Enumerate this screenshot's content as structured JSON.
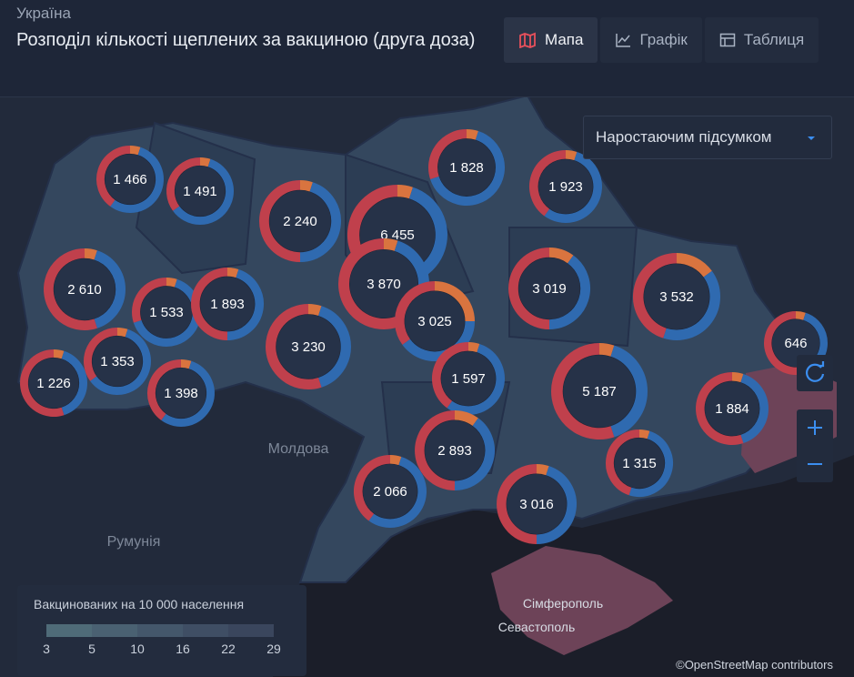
{
  "header": {
    "kicker": "Україна",
    "title": "Розподіл кількості щеплених за вакциною (друга доза)"
  },
  "tabs": [
    "Мапа",
    "Графік",
    "Таблиця"
  ],
  "dropdown": "Наростаючим підсумком",
  "places": [
    "Молдова",
    "Румунія",
    "Сімферополь",
    "Севастополь"
  ],
  "donuts": [
    {
      "label": "1 466",
      "shares": [
        5,
        55,
        40
      ]
    },
    {
      "label": "1 491",
      "shares": [
        5,
        60,
        35
      ]
    },
    {
      "label": "2 240",
      "shares": [
        5,
        45,
        50
      ]
    },
    {
      "label": "6 455",
      "shares": [
        5,
        50,
        45
      ]
    },
    {
      "label": "1 828",
      "shares": [
        5,
        65,
        30
      ]
    },
    {
      "label": "1 923",
      "shares": [
        5,
        55,
        40
      ]
    },
    {
      "label": "2 610",
      "shares": [
        5,
        40,
        55
      ]
    },
    {
      "label": "1 533",
      "shares": [
        5,
        65,
        30
      ]
    },
    {
      "label": "1 893",
      "shares": [
        5,
        45,
        50
      ]
    },
    {
      "label": "3 870",
      "shares": [
        5,
        40,
        55
      ]
    },
    {
      "label": "3 019",
      "shares": [
        10,
        40,
        50
      ]
    },
    {
      "label": "3 532",
      "shares": [
        15,
        40,
        45
      ]
    },
    {
      "label": "3 025",
      "shares": [
        25,
        40,
        35
      ]
    },
    {
      "label": "3 230",
      "shares": [
        5,
        40,
        55
      ]
    },
    {
      "label": "646",
      "shares": [
        5,
        40,
        55
      ]
    },
    {
      "label": "1 226",
      "shares": [
        5,
        40,
        55
      ]
    },
    {
      "label": "1 353",
      "shares": [
        5,
        60,
        35
      ]
    },
    {
      "label": "1 398",
      "shares": [
        5,
        55,
        40
      ]
    },
    {
      "label": "1 597",
      "shares": [
        5,
        55,
        40
      ]
    },
    {
      "label": "5 187",
      "shares": [
        5,
        40,
        55
      ]
    },
    {
      "label": "1 884",
      "shares": [
        5,
        40,
        55
      ]
    },
    {
      "label": "2 893",
      "shares": [
        10,
        40,
        50
      ]
    },
    {
      "label": "1 315",
      "shares": [
        5,
        50,
        45
      ]
    },
    {
      "label": "2 066",
      "shares": [
        5,
        55,
        40
      ]
    },
    {
      "label": "3 016",
      "shares": [
        5,
        45,
        50
      ]
    }
  ],
  "legend": {
    "title": "Вакцинованих на 10 000 населення",
    "ticks": [
      "3",
      "5",
      "10",
      "16",
      "22",
      "29"
    ]
  },
  "attribution": "©OpenStreetMap contributors"
}
